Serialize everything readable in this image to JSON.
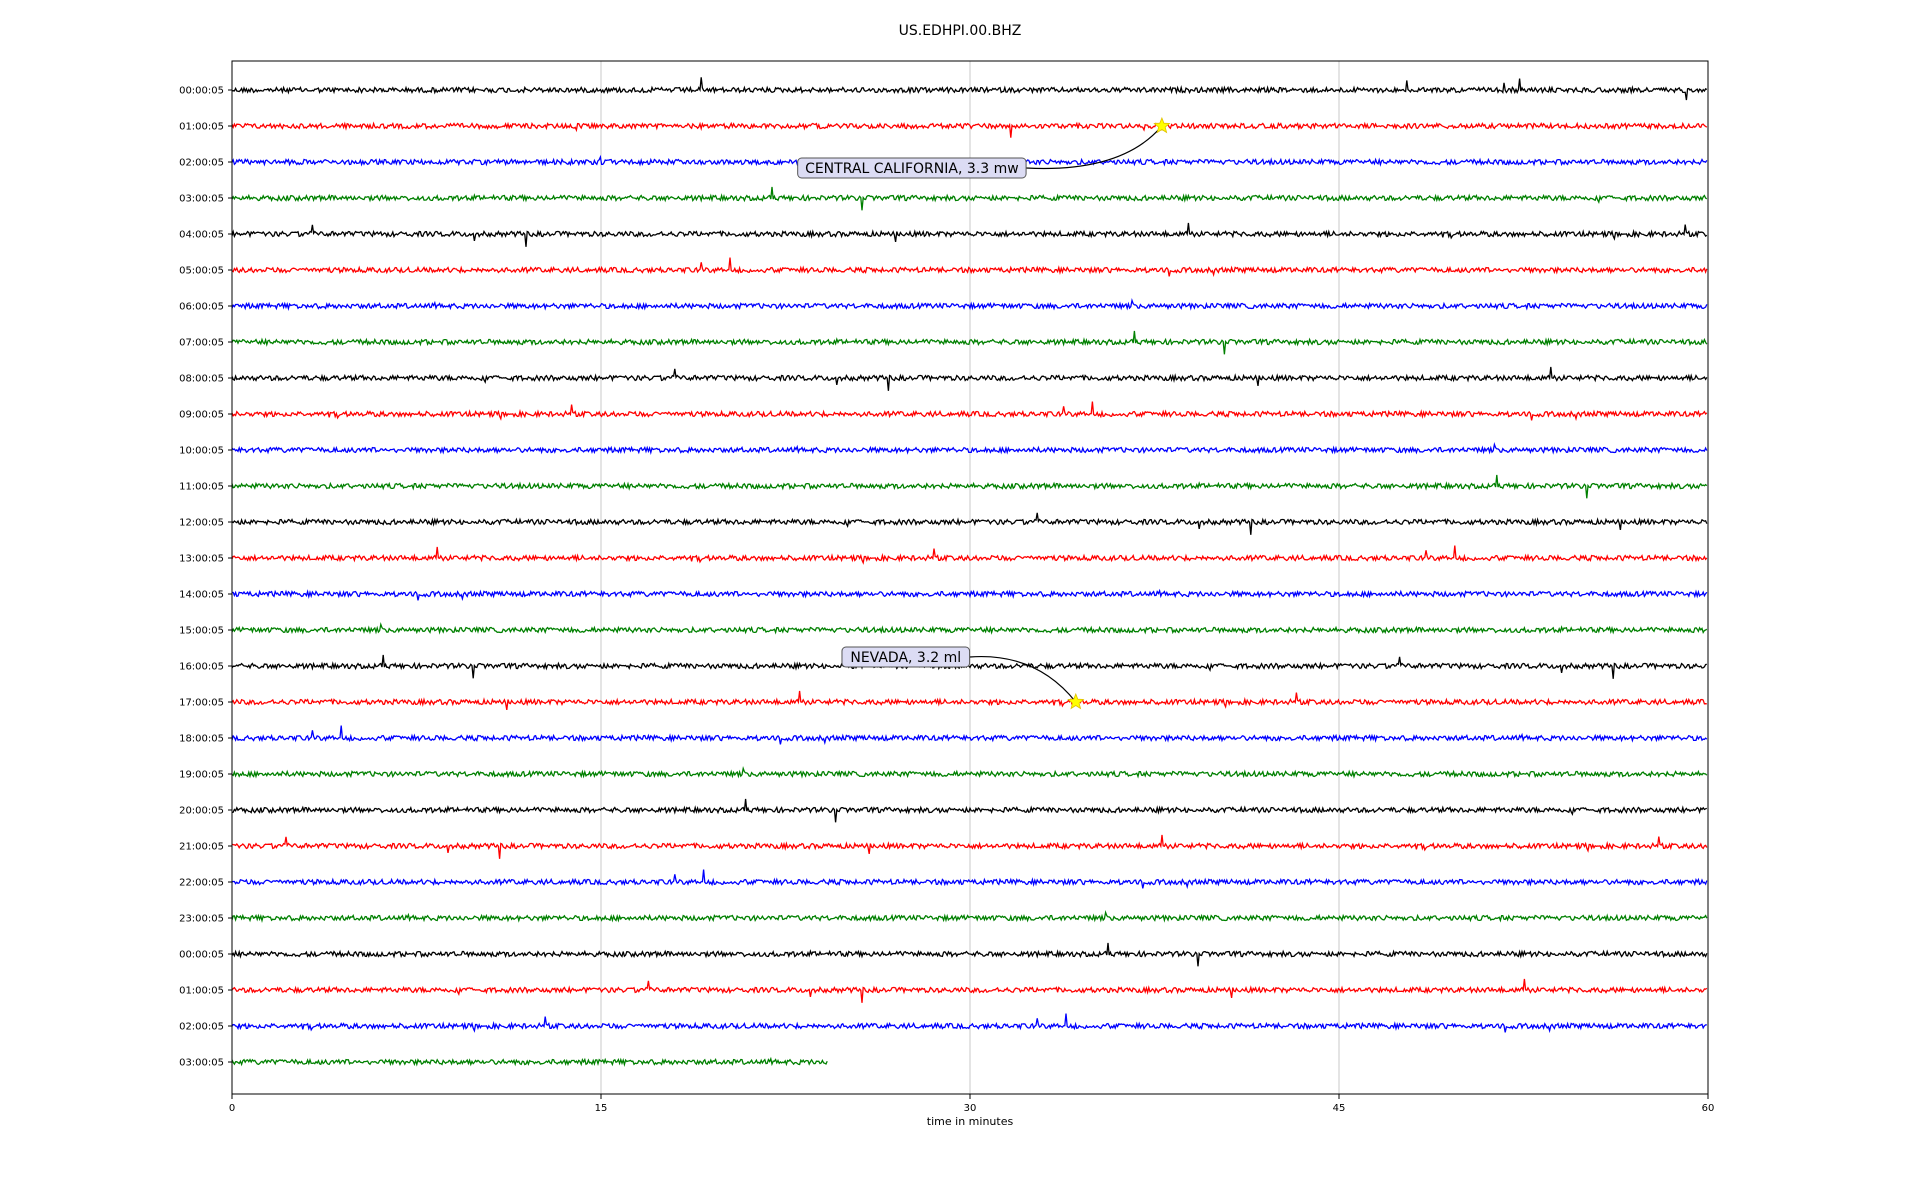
{
  "chart_data": {
    "type": "line",
    "title": "US.EDHPI.00.BHZ",
    "xlabel": "time in minutes",
    "ylabel": "",
    "xlim": [
      0,
      60
    ],
    "x_ticks": [
      "0",
      "15",
      "30",
      "45",
      "60"
    ],
    "grid": "vertical lines at 15-minute ticks",
    "trace_colors": [
      "#000000",
      "#ff0000",
      "#0000ff",
      "#008000"
    ],
    "row_labels": [
      "00:00:05",
      "01:00:05",
      "02:00:05",
      "03:00:05",
      "04:00:05",
      "05:00:05",
      "06:00:05",
      "07:00:05",
      "08:00:05",
      "09:00:05",
      "10:00:05",
      "11:00:05",
      "12:00:05",
      "13:00:05",
      "14:00:05",
      "15:00:05",
      "16:00:05",
      "17:00:05",
      "18:00:05",
      "19:00:05",
      "20:00:05",
      "21:00:05",
      "22:00:05",
      "23:00:05",
      "00:00:05",
      "01:00:05",
      "02:00:05",
      "03:00:05"
    ],
    "last_row_end_minute": 24.2,
    "events": [
      {
        "label": "CENTRAL CALIFORNIA, 3.3 mw",
        "row": 1,
        "minute": 37.8
      },
      {
        "label": "NEVADA, 3.2 ml",
        "row": 17,
        "minute": 34.3
      }
    ]
  }
}
